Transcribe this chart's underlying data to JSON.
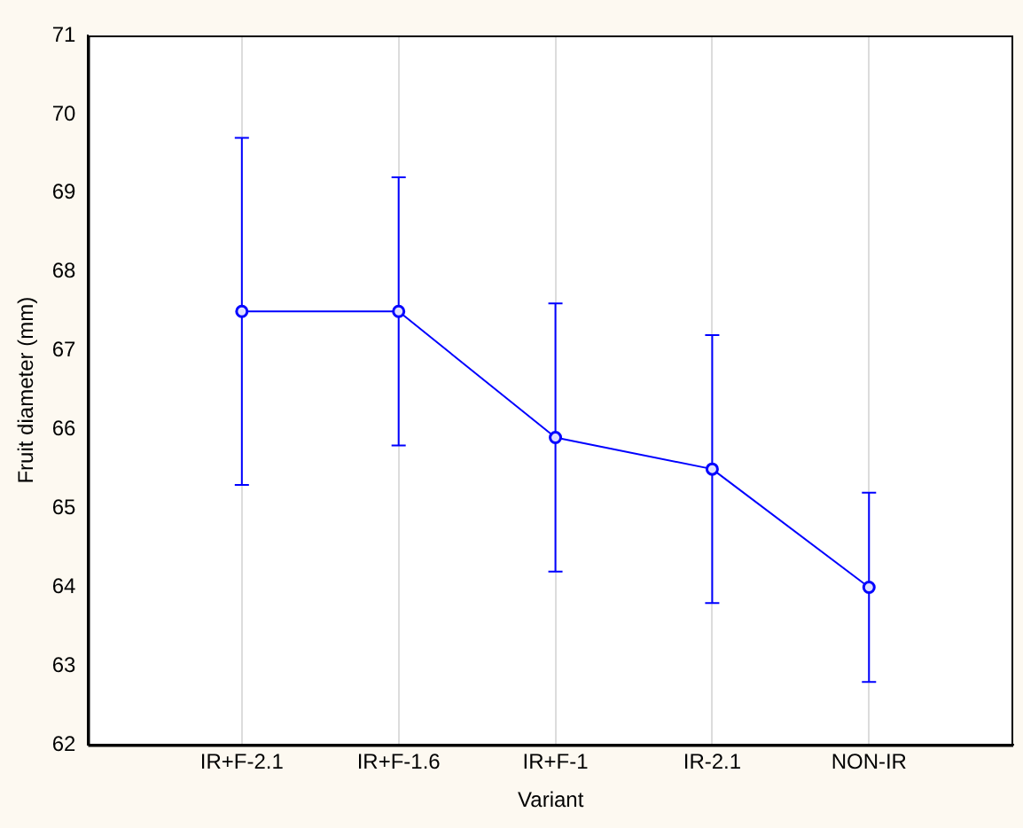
{
  "chart_data": {
    "type": "line",
    "xlabel": "Variant",
    "ylabel": "Fruit diameter (mm)",
    "categories": [
      "IR+F-2.1",
      "IR+F-1.6",
      "IR+F-1",
      "IR-2.1",
      "NON-IR"
    ],
    "series": [
      {
        "color": "#0000ff",
        "values": [
          67.5,
          67.5,
          65.9,
          65.5,
          64.0
        ],
        "errors": [
          [
            65.3,
            69.7
          ],
          [
            65.8,
            69.2
          ],
          [
            64.2,
            67.6
          ],
          [
            63.8,
            67.2
          ],
          [
            62.8,
            65.2
          ]
        ]
      }
    ],
    "ylim": [
      62,
      71
    ],
    "yticks": [
      62,
      63,
      64,
      65,
      66,
      67,
      68,
      69,
      70,
      71
    ],
    "grid": "x",
    "marker": "circle",
    "line_style": "solid",
    "legend": false
  }
}
